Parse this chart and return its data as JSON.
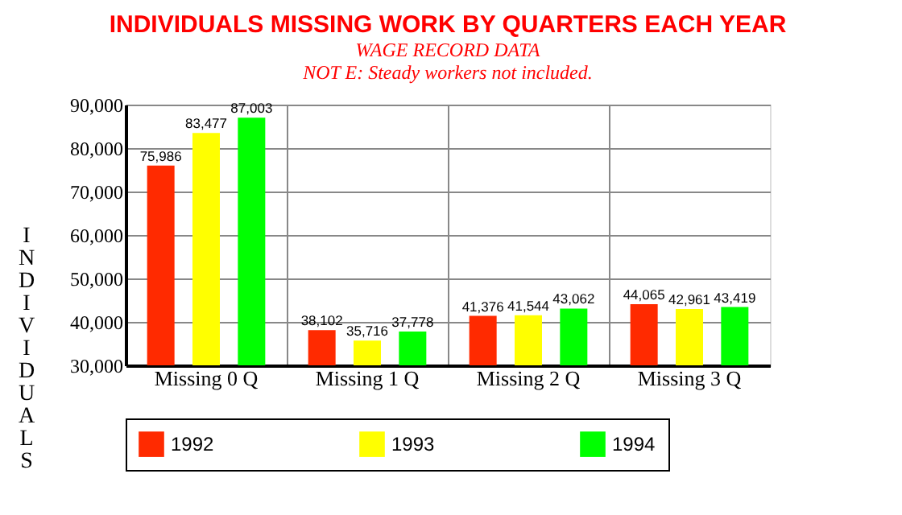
{
  "chart_data": {
    "type": "bar",
    "title": "INDIVIDUALS MISSING WORK BY QUARTERS EACH YEAR",
    "subtitle": "WAGE RECORD DATA",
    "annotations": [
      "NOT E:  Steady workers not included."
    ],
    "ylabel": "INDIVIDUALS",
    "categories": [
      "Missing 0 Q",
      "Missing 1 Q",
      "Missing 2 Q",
      "Missing 3 Q"
    ],
    "series": [
      {
        "name": "1992",
        "color": "#ff2a00",
        "values": [
          75986,
          38102,
          41376,
          44065
        ],
        "value_labels": [
          "75,986",
          "38,102",
          "41,376",
          "44,065"
        ]
      },
      {
        "name": "1993",
        "color": "#ffff00",
        "values": [
          83477,
          35716,
          41544,
          42961
        ],
        "value_labels": [
          "83,477",
          "35,716",
          "41,544",
          "42,961"
        ]
      },
      {
        "name": "1994",
        "color": "#00ff00",
        "values": [
          87003,
          37778,
          43062,
          43419
        ],
        "value_labels": [
          "87,003",
          "37,778",
          "43,062",
          "43,419"
        ]
      }
    ],
    "ylim": [
      30000,
      90000
    ],
    "yticks": [
      {
        "value": 30000,
        "label": "30,000"
      },
      {
        "value": 40000,
        "label": "40,000"
      },
      {
        "value": 50000,
        "label": "50,000"
      },
      {
        "value": 60000,
        "label": "60,000"
      },
      {
        "value": 70000,
        "label": "70,000"
      },
      {
        "value": 80000,
        "label": "80,000"
      },
      {
        "value": 90000,
        "label": "90,000"
      }
    ],
    "grid": true,
    "legend": "bottom"
  }
}
